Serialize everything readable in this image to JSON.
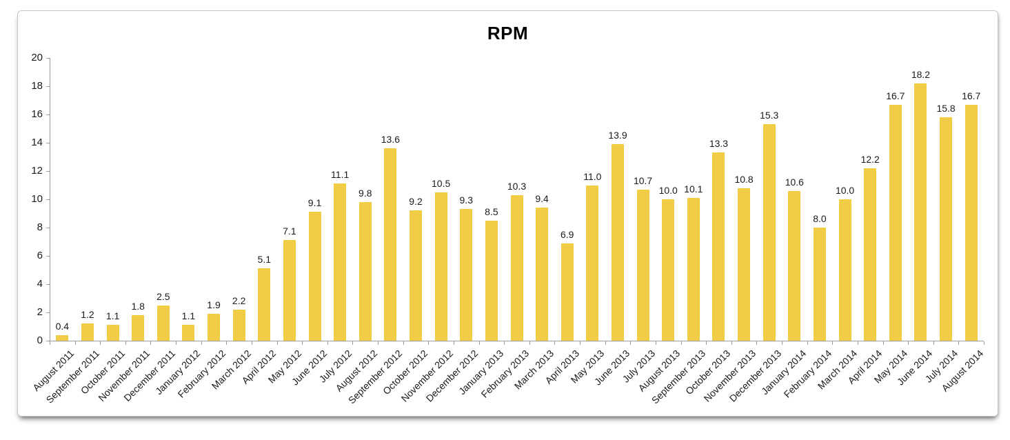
{
  "chart_data": {
    "type": "bar",
    "title": "RPM",
    "categories": [
      "August 2011",
      "September 2011",
      "October 2011",
      "November 2011",
      "December 2011",
      "January 2012",
      "February 2012",
      "March 2012",
      "April 2012",
      "May 2012",
      "June 2012",
      "July 2012",
      "August 2012",
      "September 2012",
      "October 2012",
      "November 2012",
      "December 2012",
      "January 2013",
      "February 2013",
      "March 2013",
      "April 2013",
      "May 2013",
      "June 2013",
      "July 2013",
      "August 2013",
      "September 2013",
      "October 2013",
      "November 2013",
      "December 2013",
      "January 2014",
      "February 2014",
      "March 2014",
      "April 2014",
      "May 2014",
      "June 2014",
      "July 2014",
      "August 2014"
    ],
    "values": [
      0.4,
      1.2,
      1.1,
      1.8,
      2.5,
      1.1,
      1.9,
      2.2,
      5.1,
      7.1,
      9.1,
      11.1,
      9.8,
      13.6,
      9.2,
      10.5,
      9.3,
      8.5,
      10.3,
      9.4,
      6.9,
      11.0,
      13.9,
      10.7,
      10.0,
      10.1,
      13.3,
      10.8,
      15.3,
      10.6,
      8.0,
      10.0,
      12.2,
      16.7,
      18.2,
      15.8,
      16.7
    ],
    "value_labels": [
      "0.4",
      "1.2",
      "1.1",
      "1.8",
      "2.5",
      "1.1",
      "1.9",
      "2.2",
      "5.1",
      "7.1",
      "9.1",
      "11.1",
      "9.8",
      "13.6",
      "9.2",
      "10.5",
      "9.3",
      "8.5",
      "10.3",
      "9.4",
      "6.9",
      "11.0",
      "13.9",
      "10.7",
      "10.0",
      "10.1",
      "13.3",
      "10.8",
      "15.3",
      "10.6",
      "8.0",
      "10.0",
      "12.2",
      "16.7",
      "18.2",
      "15.8",
      "16.7"
    ],
    "xlabel": "",
    "ylabel": "",
    "ylim": [
      0,
      20
    ],
    "y_ticks": [
      0,
      2,
      4,
      6,
      8,
      10,
      12,
      14,
      16,
      18,
      20
    ],
    "grid": "off",
    "legend": "none",
    "colors": {
      "bar": "#F0CD44",
      "axis": "#9b9b9b",
      "text": "#1a1a1a",
      "slide_border": "#c6c6c6"
    }
  }
}
